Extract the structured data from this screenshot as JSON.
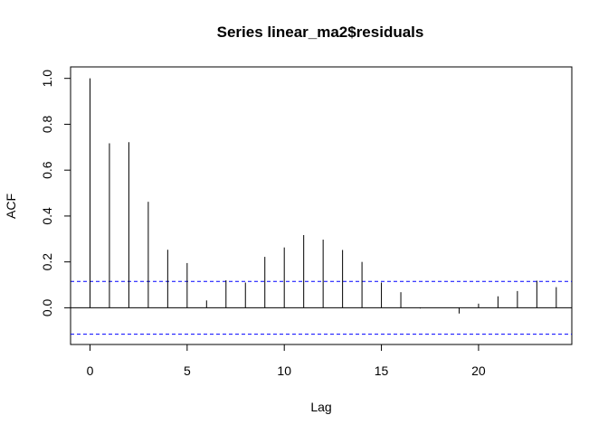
{
  "chart_data": {
    "type": "bar",
    "title": "Series  linear_ma2$residuals",
    "xlabel": "Lag",
    "ylabel": "ACF",
    "xlim": [
      -1,
      24.8
    ],
    "ylim": [
      -0.16,
      1.05
    ],
    "xticks": [
      0,
      5,
      10,
      15,
      20
    ],
    "yticks": [
      0.0,
      0.2,
      0.4,
      0.6,
      0.8,
      1.0
    ],
    "xtick_labels": [
      "0",
      "5",
      "10",
      "15",
      "20"
    ],
    "ytick_labels": [
      "0.0",
      "0.2",
      "0.4",
      "0.6",
      "0.8",
      "1.0"
    ],
    "lags": [
      0,
      1,
      2,
      3,
      4,
      5,
      6,
      7,
      8,
      9,
      10,
      11,
      12,
      13,
      14,
      15,
      16,
      17,
      18,
      19,
      20,
      21,
      22,
      23,
      24
    ],
    "acf": [
      1.0,
      0.717,
      0.722,
      0.462,
      0.253,
      0.195,
      0.032,
      0.12,
      0.11,
      0.222,
      0.263,
      0.317,
      0.297,
      0.252,
      0.2,
      0.11,
      0.068,
      -0.003,
      0.0,
      -0.025,
      0.018,
      0.05,
      0.073,
      0.118,
      0.09
    ],
    "confidence_bound": 0.115,
    "zero_line": true,
    "grid": false,
    "colors": {
      "bars": "#000000",
      "confidence": "#0000ff",
      "frame": "#000000"
    }
  }
}
